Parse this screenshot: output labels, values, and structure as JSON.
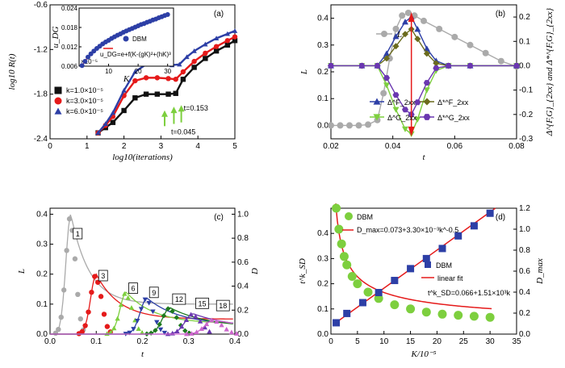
{
  "colors": {
    "grey": "#aaaaaa",
    "red": "#e51a1a",
    "blue": "#2d3fa6",
    "green": "#7dcf3e",
    "olive": "#6b6b1d",
    "purple": "#6a37b0",
    "black": "#111111",
    "yellow": "#ffff66"
  },
  "chart_data": [
    {
      "panel": "(a)",
      "type": "line",
      "xlabel": "log10(iterations)",
      "ylabel": "log10 R(t)",
      "xlim": [
        0,
        5
      ],
      "ylim": [
        -2.4,
        -0.6
      ],
      "xticks": [
        "0",
        "1",
        "2",
        "3",
        "4",
        "5"
      ],
      "yticks": [
        "-2.4",
        "-1.8",
        "-1.2",
        "-0.6"
      ],
      "series": [
        {
          "name": "k=1.0×10⁻⁵",
          "color": "#111111",
          "marker": "square",
          "x": [
            1.3,
            1.5,
            1.7,
            2.0,
            2.3,
            2.6,
            2.9,
            3.2,
            3.4,
            3.6,
            3.9,
            4.2,
            4.5,
            4.8,
            5.0
          ],
          "y": [
            -2.32,
            -2.25,
            -2.18,
            -2.02,
            -1.85,
            -1.8,
            -1.8,
            -1.8,
            -1.79,
            -1.6,
            -1.44,
            -1.32,
            -1.22,
            -1.14,
            -1.08
          ]
        },
        {
          "name": "k=3.0×10⁻⁵",
          "color": "#e51a1a",
          "marker": "circle",
          "x": [
            1.3,
            1.5,
            1.7,
            2.0,
            2.3,
            2.6,
            2.9,
            3.2,
            3.4,
            3.6,
            3.9,
            4.2,
            4.5,
            4.8,
            5.0
          ],
          "y": [
            -2.32,
            -2.22,
            -2.1,
            -1.82,
            -1.62,
            -1.58,
            -1.58,
            -1.59,
            -1.6,
            -1.5,
            -1.36,
            -1.25,
            -1.16,
            -1.08,
            -1.03
          ]
        },
        {
          "name": "k=6.0×10⁻⁵",
          "color": "#2d3fa6",
          "marker": "triangle",
          "x": [
            1.3,
            1.5,
            1.7,
            2.0,
            2.3,
            2.6,
            2.9,
            3.1,
            3.3,
            3.5,
            3.7,
            3.9,
            4.2,
            4.5,
            4.8,
            5.0
          ],
          "y": [
            -2.32,
            -2.2,
            -2.05,
            -1.75,
            -1.5,
            -1.4,
            -1.39,
            -1.4,
            -1.41,
            -1.4,
            -1.3,
            -1.22,
            -1.13,
            -1.05,
            -0.99,
            -0.95
          ]
        }
      ],
      "annotations": [
        "t=0.153",
        "t=0.045"
      ],
      "inset": {
        "type": "scatter",
        "xlabel": "K",
        "ylabel": "u_DG",
        "xlim": [
          0,
          32
        ],
        "ylim": [
          0.006,
          0.024
        ],
        "xticks": [
          "10",
          "20",
          "30"
        ],
        "yticks": [
          "0.006",
          "0.012",
          "0.018",
          "0.024"
        ],
        "exponent_label": "×10⁻⁵",
        "legend": [
          "DBM",
          "u_DG=e+f(K-(gK)²+(hK)³"
        ],
        "x": [
          1,
          2,
          3,
          4,
          5,
          6,
          7,
          8,
          9,
          10,
          11,
          12,
          13,
          14,
          15,
          16,
          17,
          18,
          19,
          20,
          21,
          22,
          23,
          24,
          25,
          26,
          27,
          28,
          29,
          30
        ],
        "y": [
          0.0062,
          0.0075,
          0.0088,
          0.0098,
          0.0107,
          0.0115,
          0.0122,
          0.0129,
          0.0135,
          0.014,
          0.0146,
          0.0151,
          0.0156,
          0.016,
          0.0165,
          0.0169,
          0.0173,
          0.0177,
          0.0181,
          0.0185,
          0.0189,
          0.0192,
          0.0196,
          0.0199,
          0.0203,
          0.0206,
          0.021,
          0.0213,
          0.0217,
          0.022
        ]
      }
    },
    {
      "panel": "(b)",
      "type": "line",
      "xlabel": "t",
      "ylabel": "L",
      "ylabel_right": "Δ^{F,G}_{2xx} and Δ*^{F,G}_{2xx}",
      "xlim": [
        0.02,
        0.08
      ],
      "ylim": [
        -0.05,
        0.45
      ],
      "y2lim": [
        -0.3,
        0.25
      ],
      "xticks": [
        "0.02",
        "0.04",
        "0.06",
        "0.08"
      ],
      "yticks": [
        "0.0",
        "0.1",
        "0.2",
        "0.3",
        "0.4"
      ],
      "y2ticks": [
        "-0.3",
        "-0.2",
        "-0.1",
        "0.0",
        "0.1",
        "0.2"
      ],
      "series": [
        {
          "name": "L",
          "color": "#aaaaaa",
          "marker": "circle",
          "axis": "left",
          "x": [
            0.02,
            0.023,
            0.026,
            0.029,
            0.032,
            0.035,
            0.037,
            0.039,
            0.041,
            0.043,
            0.045,
            0.047,
            0.05,
            0.055,
            0.06,
            0.065,
            0.07,
            0.075,
            0.08
          ],
          "y": [
            0.0,
            0.0,
            0.0,
            0.0,
            0.003,
            0.02,
            0.12,
            0.25,
            0.36,
            0.41,
            0.42,
            0.41,
            0.39,
            0.36,
            0.33,
            0.3,
            0.27,
            0.24,
            0.22
          ]
        },
        {
          "name": "Δ^F_2xx",
          "color": "#2d3fa6",
          "marker": "triangle",
          "axis": "right",
          "x": [
            0.02,
            0.03,
            0.035,
            0.038,
            0.041,
            0.044,
            0.046,
            0.048,
            0.051,
            0.054,
            0.058,
            0.065,
            0.08
          ],
          "y": [
            0.0,
            0.0,
            0.0,
            0.05,
            0.12,
            0.18,
            0.2,
            0.15,
            0.07,
            0.02,
            0.0,
            0.0,
            0.0
          ]
        },
        {
          "name": "Δ*^F_2xx",
          "color": "#6b6b1d",
          "marker": "diamond",
          "axis": "right",
          "x": [
            0.02,
            0.03,
            0.035,
            0.038,
            0.041,
            0.044,
            0.046,
            0.048,
            0.051,
            0.054,
            0.058,
            0.065,
            0.08
          ],
          "y": [
            0.0,
            0.0,
            0.0,
            0.03,
            0.08,
            0.13,
            0.15,
            0.11,
            0.05,
            0.01,
            0.0,
            0.0,
            0.0
          ]
        },
        {
          "name": "Δ^G_2xx",
          "color": "#7dcf3e",
          "marker": "triangle-down",
          "axis": "right",
          "x": [
            0.02,
            0.03,
            0.035,
            0.038,
            0.041,
            0.044,
            0.046,
            0.048,
            0.051,
            0.054,
            0.058,
            0.065,
            0.08
          ],
          "y": [
            0.0,
            0.0,
            0.0,
            -0.08,
            -0.18,
            -0.26,
            -0.28,
            -0.22,
            -0.1,
            -0.02,
            0.0,
            0.0,
            0.0
          ]
        },
        {
          "name": "Δ*^G_2xx",
          "color": "#6a37b0",
          "marker": "hexagon",
          "axis": "right",
          "x": [
            0.02,
            0.03,
            0.035,
            0.038,
            0.041,
            0.044,
            0.046,
            0.048,
            0.051,
            0.054,
            0.058,
            0.065,
            0.08
          ],
          "y": [
            0.0,
            0.0,
            0.0,
            -0.05,
            -0.12,
            -0.18,
            -0.2,
            -0.15,
            -0.07,
            -0.01,
            0.0,
            0.0,
            0.0
          ]
        }
      ]
    },
    {
      "panel": "(c)",
      "type": "line",
      "xlabel": "t",
      "ylabel": "L",
      "ylabel_right": "D",
      "xlim": [
        0,
        0.4
      ],
      "ylim": [
        0,
        0.42
      ],
      "y2lim": [
        0,
        1.05
      ],
      "xticks": [
        "0.0",
        "0.1",
        "0.2",
        "0.3",
        "0.4"
      ],
      "yticks": [
        "0.0",
        "0.1",
        "0.2",
        "0.3",
        "0.4"
      ],
      "y2ticks": [
        "0.0",
        "0.2",
        "0.4",
        "0.6",
        "0.8",
        "1.0"
      ],
      "curve_labels": [
        "1",
        "3",
        "6",
        "9",
        "12",
        "15",
        "18"
      ],
      "D_peaks": [
        {
          "label": "1",
          "t": 0.045,
          "D": 1.0,
          "color": "#aaaaaa"
        },
        {
          "label": "3",
          "t": 0.1,
          "D": 0.5,
          "color": "#e51a1a"
        },
        {
          "label": "6",
          "t": 0.165,
          "D": 0.35,
          "color": "#7dcf3e"
        },
        {
          "label": "9",
          "t": 0.21,
          "D": 0.3,
          "color": "#2d3fa6"
        },
        {
          "label": "12",
          "t": 0.26,
          "D": 0.22,
          "color": "#1e7a1e"
        },
        {
          "label": "15",
          "t": 0.31,
          "D": 0.17,
          "color": "#6a37b0"
        },
        {
          "label": "18",
          "t": 0.355,
          "D": 0.12,
          "color": "#cc66cc"
        }
      ]
    },
    {
      "panel": "(d)",
      "type": "scatter",
      "xlabel": "K/10⁻⁵",
      "ylabel": "t^k_SD",
      "ylabel_right": "D_max",
      "xlim": [
        0,
        35
      ],
      "ylim": [
        0,
        0.5
      ],
      "y2lim": [
        0,
        1.2
      ],
      "xticks": [
        "0",
        "5",
        "10",
        "15",
        "20",
        "25",
        "30",
        "35"
      ],
      "yticks": [
        "0.0",
        "0.1",
        "0.2",
        "0.3",
        "0.4"
      ],
      "y2ticks": [
        "0.0",
        "0.2",
        "0.4",
        "0.6",
        "0.8",
        "1.0",
        "1.2"
      ],
      "legend": [
        "DBM",
        "D_max=0.073+3.30×10⁻³k^-0.5",
        "DBM",
        "linear fit",
        "t^k_SD=0.066+1.51×10³k"
      ],
      "series": [
        {
          "name": "D_max DBM",
          "color": "#7dcf3e",
          "marker": "circle",
          "axis": "right",
          "x": [
            1,
            1.5,
            2,
            2.5,
            3,
            4,
            5,
            7,
            9,
            12,
            15,
            18,
            21,
            24,
            27,
            30
          ],
          "y": [
            1.2,
            1.0,
            0.86,
            0.74,
            0.66,
            0.55,
            0.48,
            0.4,
            0.34,
            0.28,
            0.24,
            0.21,
            0.19,
            0.18,
            0.17,
            0.16
          ]
        },
        {
          "name": "t_SD DBM",
          "color": "#2d3fa6",
          "marker": "square",
          "axis": "left",
          "x": [
            1,
            3,
            6,
            9,
            12,
            15,
            18,
            21,
            24,
            27,
            30
          ],
          "y": [
            0.045,
            0.082,
            0.125,
            0.165,
            0.213,
            0.26,
            0.3,
            0.34,
            0.39,
            0.43,
            0.48
          ]
        }
      ]
    }
  ]
}
